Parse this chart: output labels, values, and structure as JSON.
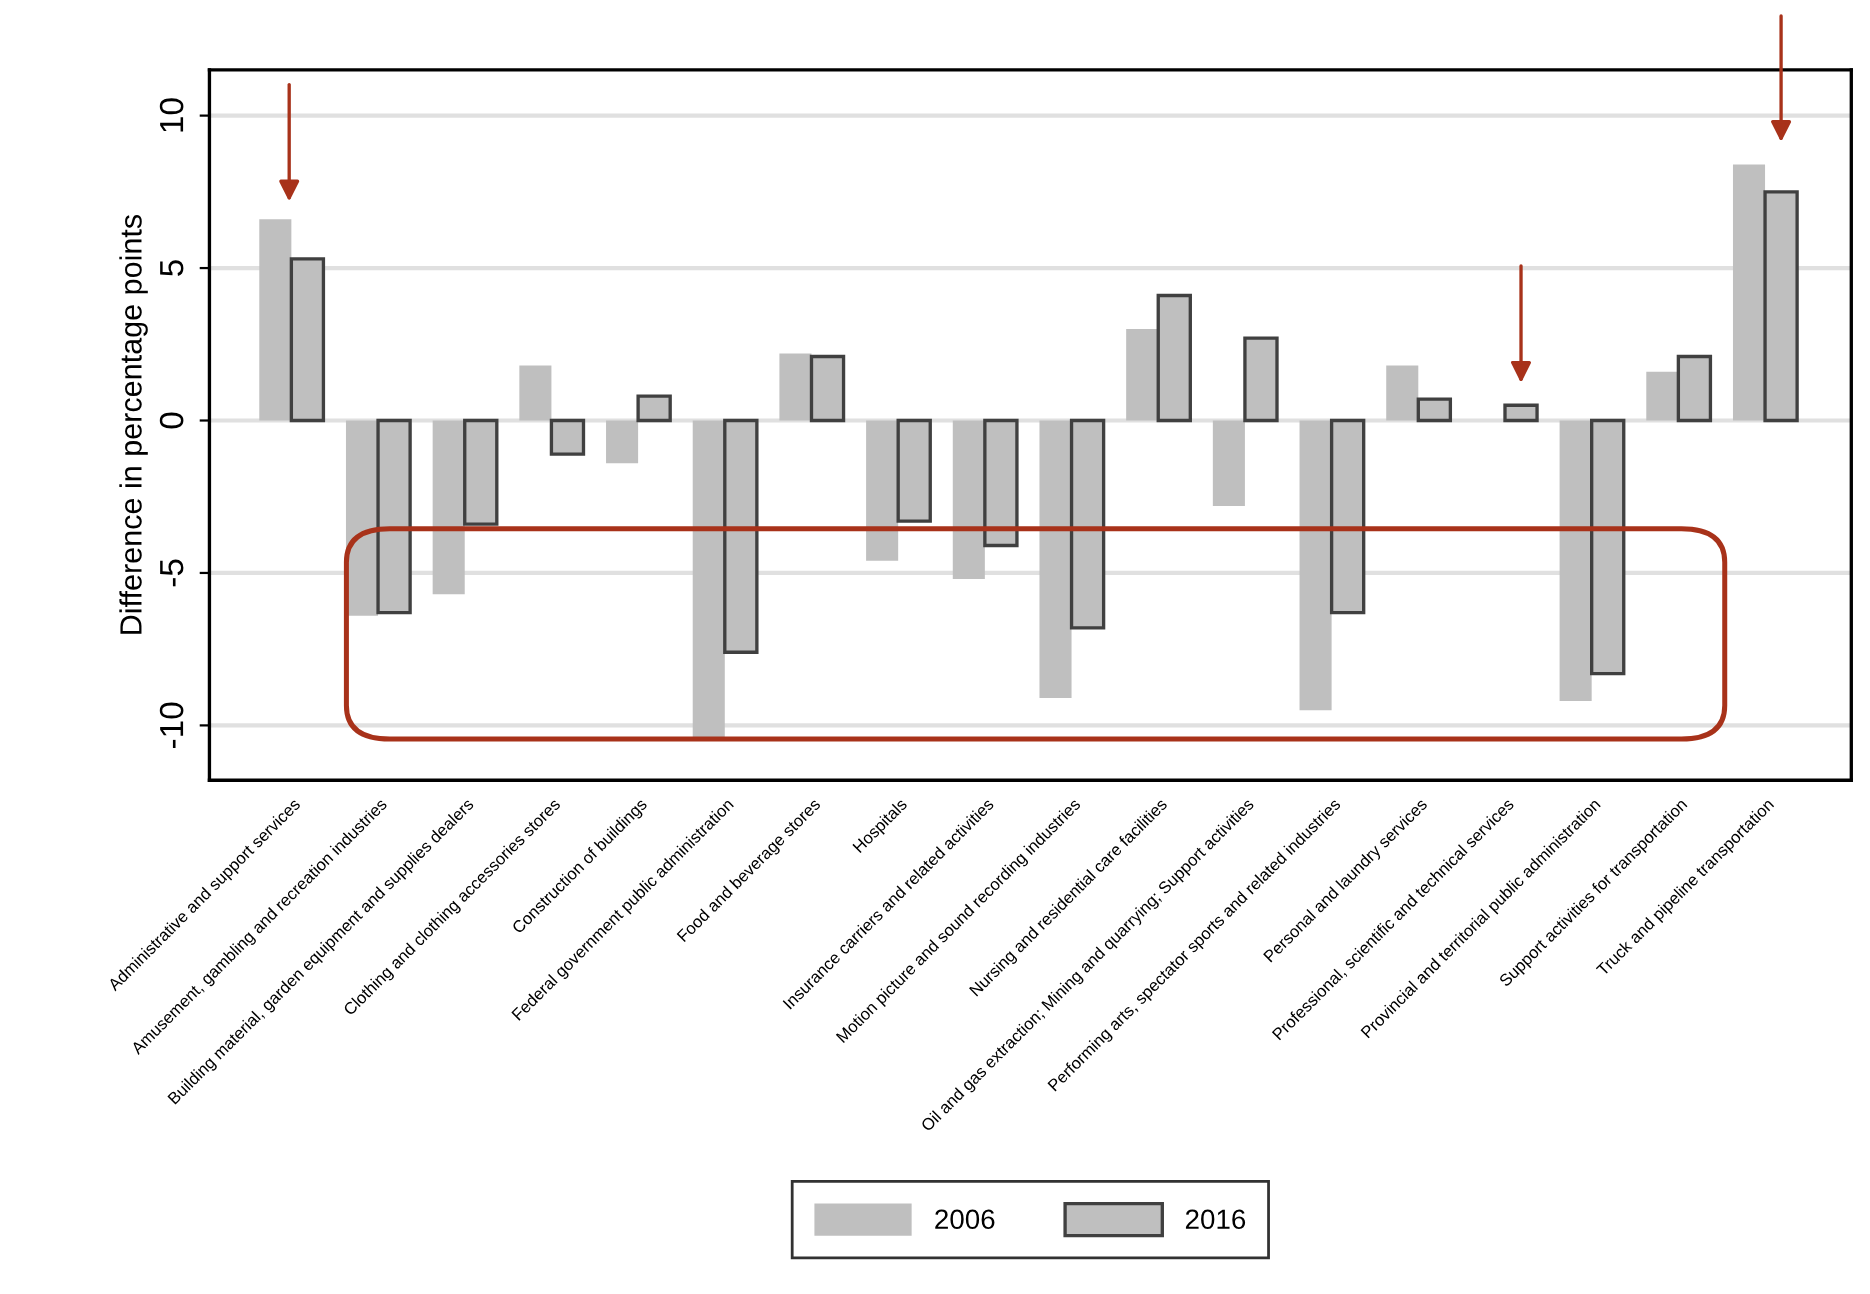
{
  "chart_data": {
    "type": "bar",
    "ylabel": "Difference in percentage points",
    "categories": [
      "Administrative and support services",
      "Amusement, gambling and recreation industries",
      "Building material, garden equipment and supplies dealers",
      "Clothing and clothing accessories stores",
      "Construction of buildings",
      "Federal government public administration",
      "Food and beverage stores",
      "Hospitals",
      "Insurance carriers and related activities",
      "Motion picture and sound recording industries",
      "Nursing and residential care facilities",
      "Oil and gas extraction; Mining and quarrying; Support activities",
      "Performing arts, spectator sports and related industries",
      "Personal and laundry services",
      "Professional, scientific and technical services",
      "Provincial and territorial public administration",
      "Support activities for transportation",
      "Truck and pipeline transportation"
    ],
    "series": [
      {
        "name": "2006",
        "color": "#bfbfbf",
        "values": [
          6.6,
          -6.4,
          -5.7,
          1.8,
          -1.4,
          -10.5,
          2.2,
          -4.6,
          -5.2,
          -9.1,
          3.0,
          -2.8,
          -9.5,
          1.8,
          0,
          -9.2,
          1.6,
          8.4
        ]
      },
      {
        "name": "2016",
        "color": "#bfbfbf",
        "values": [
          5.3,
          -6.3,
          -3.4,
          -1.1,
          0.8,
          -7.6,
          2.1,
          -3.3,
          -4.1,
          -6.8,
          4.1,
          2.7,
          -6.3,
          0.7,
          0.5,
          -8.3,
          2.1,
          7.5
        ]
      }
    ],
    "ylim": [
      -11.8,
      11.5
    ],
    "yticks": [
      -10,
      -5,
      0,
      5,
      10
    ],
    "grid": "y",
    "legend": "bottom"
  }
}
